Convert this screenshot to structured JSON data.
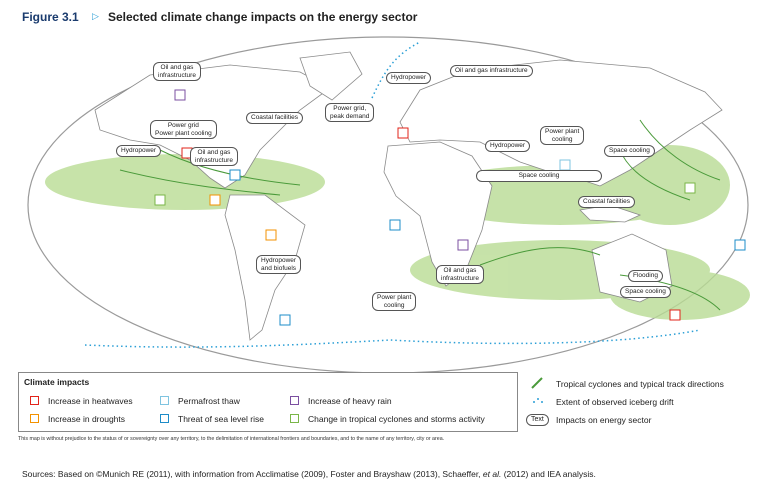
{
  "header": {
    "figure": "Figure 3.1",
    "title": "Selected climate change impacts on the energy sector"
  },
  "map_labels": [
    {
      "lines": [
        "Oil and gas",
        "infrastructure"
      ]
    },
    {
      "lines": [
        "Hydropower"
      ]
    },
    {
      "lines": [
        "Oil and gas infrastructure"
      ]
    },
    {
      "lines": [
        "Power grid,",
        "peak demand"
      ]
    },
    {
      "lines": [
        "Coastal facilities"
      ]
    },
    {
      "lines": [
        "Power grid",
        "Power plant cooling"
      ]
    },
    {
      "lines": [
        "Hydropower"
      ]
    },
    {
      "lines": [
        "Oil and gas",
        "infrastructure"
      ]
    },
    {
      "lines": [
        "Hydropower"
      ]
    },
    {
      "lines": [
        "Power plant",
        "cooling"
      ]
    },
    {
      "lines": [
        "Space cooling"
      ]
    },
    {
      "lines": [
        "Space cooling"
      ]
    },
    {
      "lines": [
        "Coastal facilities"
      ]
    },
    {
      "lines": [
        "Hydropower",
        "and biofuels"
      ]
    },
    {
      "lines": [
        "Oil and gas",
        "infrastructure"
      ]
    },
    {
      "lines": [
        "Power plant",
        "cooling"
      ]
    },
    {
      "lines": [
        "Flooding"
      ]
    },
    {
      "lines": [
        "Space cooling"
      ]
    }
  ],
  "legend": {
    "title": "Climate impacts",
    "items": [
      "Increase in heatwaves",
      "Increase in droughts",
      "Permafrost thaw",
      "Threat of sea level rise",
      "Increase of heavy rain",
      "Change in tropical cyclones and storms activity"
    ],
    "cyclone_tracks": "Tropical cyclones and typical track directions",
    "iceberg": "Extent of observed iceberg drift",
    "text_sample": "Text",
    "text_meaning": "Impacts on energy sector"
  },
  "disclaimer": "This map is without prejudice to the status of or sovereignty over any territory, to the delimitation of international frontiers and boundaries, and to the name of any territory, city or area.",
  "sources": {
    "before": "Sources: Based on ©Munich RE (2011), with information from Acclimatise (2009), Foster and Brayshaw (2013), Schaeffer, ",
    "italic": "et al.",
    "after": " (2012) and IEA analysis."
  }
}
